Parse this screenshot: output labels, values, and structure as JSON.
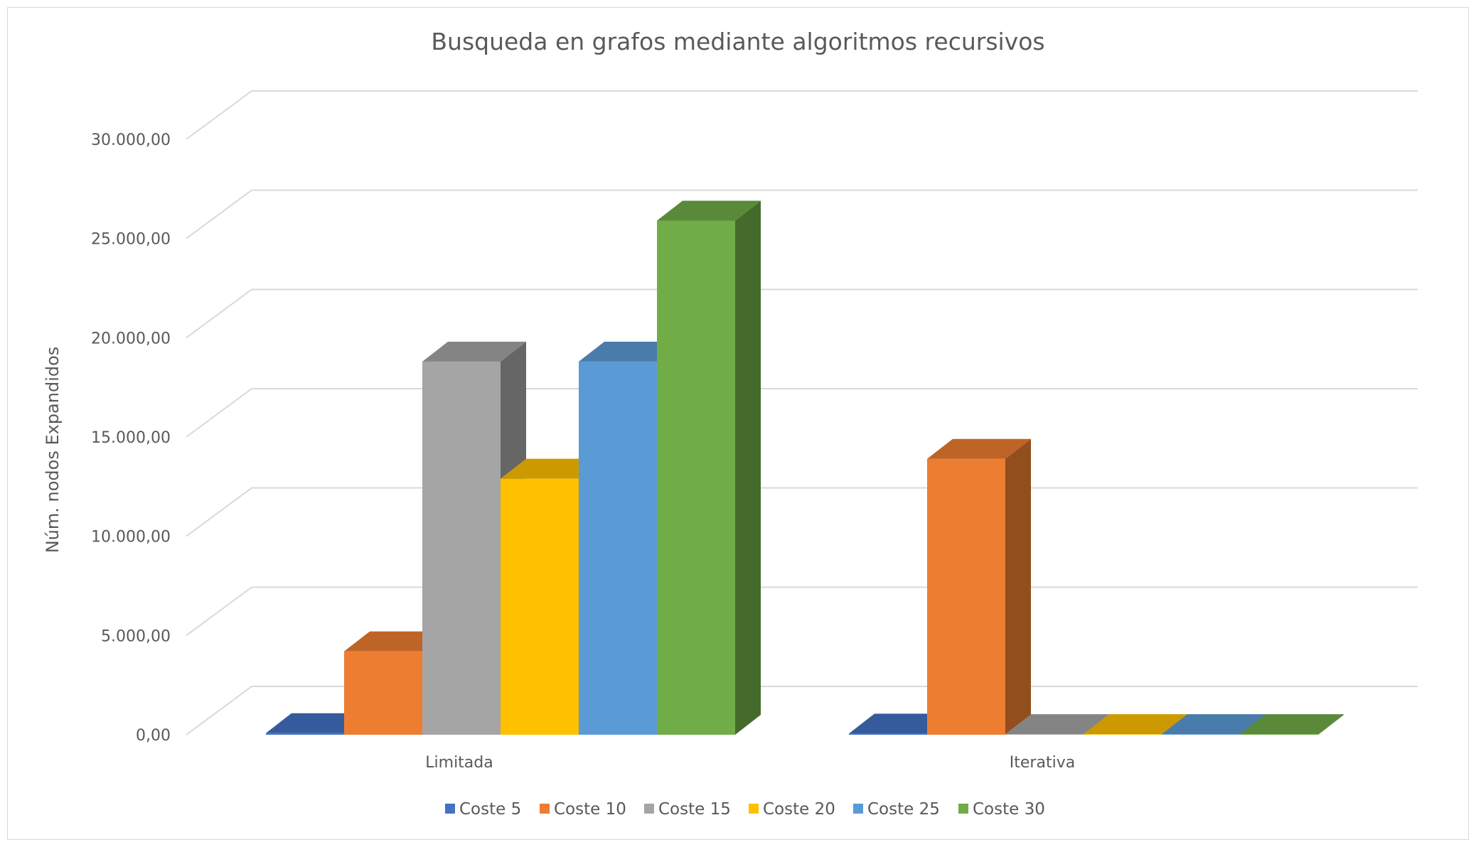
{
  "chart_data": {
    "type": "bar",
    "subtype": "3d-clustered-column",
    "title": "Busqueda  en grafos mediante algoritmos recursivos",
    "xlabel": "",
    "ylabel": "Núm. nodos Expandidos",
    "ylim": [
      0,
      30000
    ],
    "ytick_step": 5000,
    "ytick_labels": [
      "0,00",
      "5.000,00",
      "10.000,00",
      "15.000,00",
      "20.000,00",
      "25.000,00",
      "30.000,00"
    ],
    "categories": [
      "Limitada",
      "Iterativa"
    ],
    "grid": true,
    "legend_position": "bottom",
    "series": [
      {
        "name": "Coste 5",
        "color": "#4472C4",
        "values": [
          80,
          60
        ]
      },
      {
        "name": "Coste 10",
        "color": "#ED7D31",
        "values": [
          4200,
          13900
        ]
      },
      {
        "name": "Coste 15",
        "color": "#A5A5A5",
        "values": [
          18800,
          30
        ]
      },
      {
        "name": "Coste 20",
        "color": "#FFC000",
        "values": [
          12900,
          30
        ]
      },
      {
        "name": "Coste 25",
        "color": "#5B9BD5",
        "values": [
          18800,
          30
        ]
      },
      {
        "name": "Coste 30",
        "color": "#70AD47",
        "values": [
          25900,
          30
        ]
      }
    ]
  }
}
